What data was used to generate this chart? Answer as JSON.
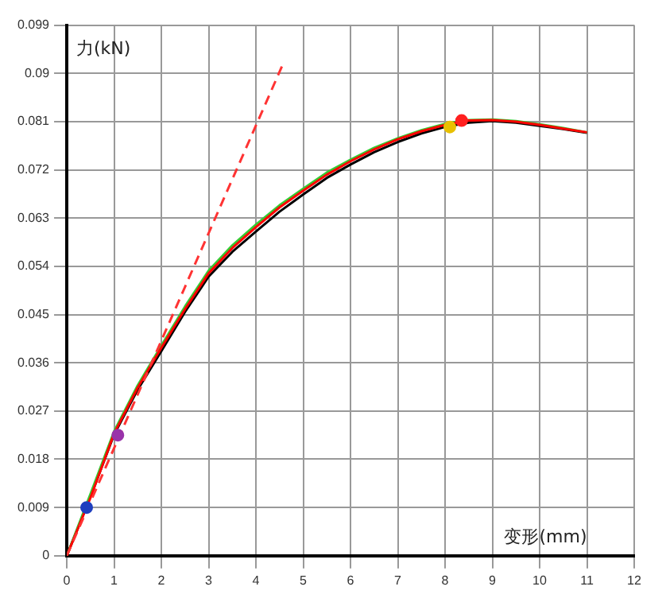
{
  "chart_data": {
    "type": "line",
    "xlabel": "变形(mm)",
    "ylabel": "力(kN)",
    "xlim": [
      0,
      12
    ],
    "xticks": [
      0,
      1,
      2,
      3,
      4,
      5,
      6,
      7,
      8,
      9,
      10,
      11,
      12
    ],
    "ylim": [
      0,
      0.099
    ],
    "yticks": [
      0,
      0.009,
      0.018,
      0.027,
      0.036,
      0.045,
      0.054,
      0.063,
      0.072,
      0.081,
      0.09,
      0.099
    ],
    "grid": true,
    "legend": false,
    "marker": "none",
    "line_style": "solid",
    "series": [
      {
        "color": "#000000",
        "x": [
          0,
          0.5,
          1,
          1.5,
          2,
          2.5,
          3,
          3.5,
          4,
          4.5,
          5,
          5.5,
          6,
          6.5,
          7,
          7.5,
          8,
          8.5,
          9,
          9.5,
          10,
          10.5,
          11
        ],
        "values": [
          0,
          0.011,
          0.0226,
          0.031,
          0.0382,
          0.0455,
          0.0521,
          0.0567,
          0.0605,
          0.0642,
          0.0674,
          0.0705,
          0.073,
          0.0753,
          0.0772,
          0.0788,
          0.08,
          0.0808,
          0.0811,
          0.0808,
          0.0802,
          0.0796,
          0.0789
        ]
      },
      {
        "color": "#33cc33",
        "x": [
          0,
          0.5,
          1,
          1.5,
          2,
          2.5,
          3,
          3.5,
          4,
          4.5,
          5,
          5.5,
          6,
          6.5,
          7,
          7.5,
          8,
          8.5,
          9,
          9.5,
          10,
          10.5,
          11
        ],
        "values": [
          0,
          0.0115,
          0.0232,
          0.0318,
          0.0392,
          0.0465,
          0.0532,
          0.0579,
          0.0618,
          0.0654,
          0.0685,
          0.0715,
          0.0739,
          0.0761,
          0.0779,
          0.0794,
          0.0806,
          0.0813,
          0.0814,
          0.0811,
          0.0805,
          0.0798,
          0.079
        ]
      },
      {
        "color": "#ff0000",
        "x": [
          0,
          0.5,
          1,
          1.5,
          2,
          2.5,
          3,
          3.5,
          4,
          4.5,
          5,
          5.5,
          6,
          6.5,
          7,
          7.5,
          8,
          8.5,
          9,
          9.5,
          10,
          10.5,
          11
        ],
        "values": [
          0,
          0.0108,
          0.0228,
          0.0314,
          0.0388,
          0.046,
          0.0527,
          0.0574,
          0.0613,
          0.065,
          0.0681,
          0.0711,
          0.0736,
          0.0758,
          0.0777,
          0.0792,
          0.0804,
          0.0812,
          0.0813,
          0.081,
          0.0804,
          0.0797,
          0.079
        ]
      },
      {
        "color": "#ff3333",
        "line_style": "dashed",
        "x": [
          0,
          4.56
        ],
        "values": [
          0,
          0.0915
        ]
      },
      {
        "type": "scatter",
        "marker": "circle",
        "colors": [
          "#1f3fbf",
          "#9933aa",
          "#e8c000",
          "#ff2020"
        ],
        "x": [
          0.42,
          1.08,
          8.1,
          8.35
        ],
        "values": [
          0.009,
          0.0225,
          0.08,
          0.0812
        ]
      }
    ]
  }
}
